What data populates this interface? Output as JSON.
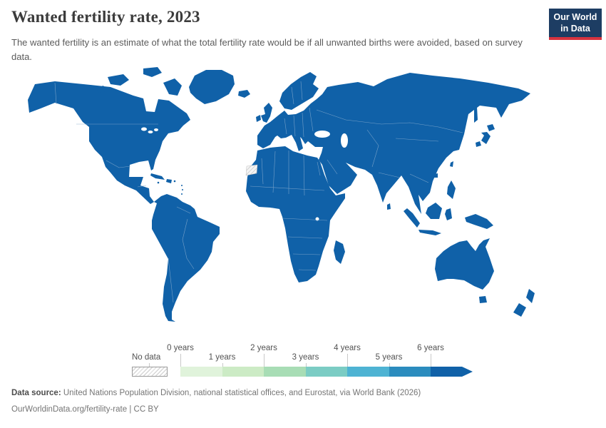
{
  "header": {
    "title": "Wanted fertility rate, 2023",
    "subtitle": "The wanted fertility is an estimate of what the total fertility rate would be if all unwanted births were avoided, based on survey data.",
    "logo": {
      "line1": "Our World",
      "line2": "in Data"
    }
  },
  "map": {
    "fill_color": "#1061a8",
    "border_color": "#86abce",
    "ocean_color": "#ffffff",
    "no_data_region_visible": "Western Sahara (hatched)"
  },
  "legend": {
    "no_data_label": "No data",
    "tick_labels": [
      "0 years",
      "1 years",
      "2 years",
      "3 years",
      "4 years",
      "5 years",
      "6 years"
    ],
    "bin_colors": [
      "#e0f3db",
      "#ccebc5",
      "#a8ddb5",
      "#7bccc4",
      "#4eb3d3",
      "#2b8cbe",
      "#1061a8"
    ]
  },
  "footer": {
    "source_label": "Data source:",
    "source_text": "United Nations Population Division, national statistical offices, and Eurostat, via World Bank (2026)",
    "url": "OurWorldinData.org/fertility-rate",
    "separator": "|",
    "license": "CC BY"
  },
  "chart_data": {
    "type": "choropleth_map",
    "title": "Wanted fertility rate, 2023",
    "subtitle": "The wanted fertility is an estimate of what the total fertility rate would be if all unwanted births were avoided, based on survey data.",
    "year": 2023,
    "unit": "years",
    "legend_position": "bottom",
    "bins": [
      {
        "range": "0–1 years",
        "color": "#e0f3db"
      },
      {
        "range": "1–2 years",
        "color": "#ccebc5"
      },
      {
        "range": "2–3 years",
        "color": "#a8ddb5"
      },
      {
        "range": "3–4 years",
        "color": "#7bccc4"
      },
      {
        "range": "4–5 years",
        "color": "#4eb3d3"
      },
      {
        "range": "5–6 years",
        "color": "#2b8cbe"
      },
      {
        "range": "6+ years",
        "color": "#1061a8",
        "arrow": true
      }
    ],
    "no_data": {
      "label": "No data",
      "style": "hatched",
      "visible_regions": [
        "Western Sahara"
      ]
    },
    "observed_values": "All countries on the map are rendered in the darkest blue bin; Western Sahara is shown with the hatched no-data pattern.",
    "source": "United Nations Population Division, national statistical offices, and Eurostat, via World Bank (2026)"
  }
}
